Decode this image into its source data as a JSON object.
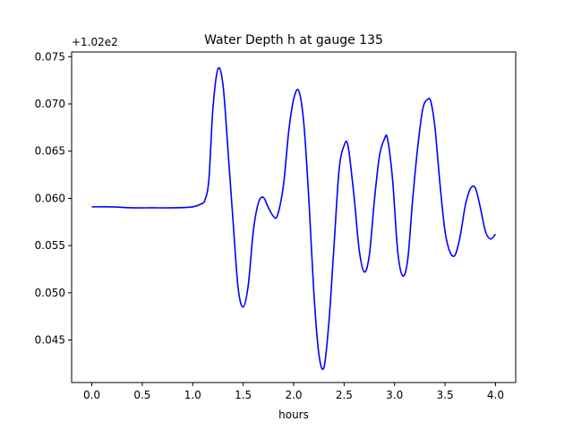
{
  "chart_data": {
    "type": "line",
    "title": "Water Depth h at gauge 135",
    "xlabel": "hours",
    "ylabel": "",
    "offset_label": "+1.02e2",
    "xlim": [
      -0.2,
      4.2
    ],
    "ylim": [
      0.0405,
      0.0755
    ],
    "xticks": [
      0.0,
      0.5,
      1.0,
      1.5,
      2.0,
      2.5,
      3.0,
      3.5,
      4.0
    ],
    "xtick_labels": [
      "0.0",
      "0.5",
      "1.0",
      "1.5",
      "2.0",
      "2.5",
      "3.0",
      "3.5",
      "4.0"
    ],
    "yticks": [
      0.045,
      0.05,
      0.055,
      0.06,
      0.065,
      0.07,
      0.075
    ],
    "ytick_labels": [
      "0.045",
      "0.050",
      "0.055",
      "0.060",
      "0.065",
      "0.070",
      "0.075"
    ],
    "grid": false,
    "series": [
      {
        "color": "#0000ff",
        "x": [
          0.0,
          0.2,
          0.4,
          0.6,
          0.8,
          1.0,
          1.08,
          1.12,
          1.16,
          1.2,
          1.25,
          1.3,
          1.35,
          1.4,
          1.45,
          1.5,
          1.55,
          1.6,
          1.65,
          1.7,
          1.75,
          1.8,
          1.84,
          1.9,
          1.95,
          2.0,
          2.05,
          2.1,
          2.15,
          2.2,
          2.25,
          2.3,
          2.35,
          2.4,
          2.45,
          2.5,
          2.54,
          2.6,
          2.65,
          2.7,
          2.75,
          2.8,
          2.85,
          2.9,
          2.93,
          2.98,
          3.03,
          3.08,
          3.13,
          3.18,
          3.23,
          3.28,
          3.33,
          3.36,
          3.4,
          3.45,
          3.5,
          3.55,
          3.6,
          3.65,
          3.7,
          3.75,
          3.8,
          3.85,
          3.9,
          3.95,
          4.0
        ],
        "y": [
          0.0591,
          0.0591,
          0.059,
          0.059,
          0.059,
          0.0591,
          0.0594,
          0.0598,
          0.062,
          0.0695,
          0.0737,
          0.072,
          0.065,
          0.0575,
          0.0505,
          0.0485,
          0.0508,
          0.0565,
          0.0595,
          0.0601,
          0.059,
          0.0581,
          0.0582,
          0.0615,
          0.067,
          0.0705,
          0.0714,
          0.068,
          0.06,
          0.05,
          0.0435,
          0.0421,
          0.047,
          0.055,
          0.063,
          0.0656,
          0.0655,
          0.06,
          0.0545,
          0.0522,
          0.054,
          0.0598,
          0.0645,
          0.0663,
          0.0663,
          0.062,
          0.0545,
          0.0518,
          0.0535,
          0.06,
          0.0655,
          0.0695,
          0.0705,
          0.0702,
          0.0675,
          0.0615,
          0.0565,
          0.0543,
          0.054,
          0.056,
          0.0592,
          0.061,
          0.0611,
          0.059,
          0.0565,
          0.0557,
          0.0562
        ]
      }
    ]
  }
}
